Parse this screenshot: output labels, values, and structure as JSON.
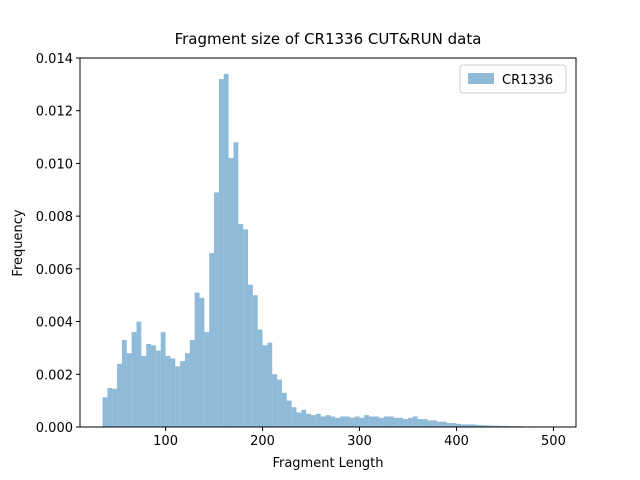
{
  "chart_data": {
    "type": "histogram",
    "title": "Fragment size of CR1336 CUT&RUN data",
    "xlabel": "Fragment Length",
    "ylabel": "Frequency",
    "bins": [
      35,
      40,
      45,
      50,
      55,
      60,
      65,
      70,
      75,
      80,
      85,
      90,
      95,
      100,
      105,
      110,
      115,
      120,
      125,
      130,
      135,
      140,
      145,
      150,
      155,
      160,
      165,
      170,
      175,
      180,
      185,
      190,
      195,
      200,
      205,
      210,
      215,
      220,
      225,
      230,
      235,
      240,
      245,
      250,
      255,
      260,
      265,
      270,
      275,
      280,
      285,
      290,
      295,
      300,
      305,
      310,
      315,
      320,
      325,
      330,
      335,
      340,
      345,
      350,
      355,
      360,
      365,
      370,
      375,
      380,
      385,
      390,
      395,
      400,
      405,
      410,
      415,
      420,
      425,
      430,
      435,
      440,
      445,
      450,
      455,
      460,
      465,
      470,
      475,
      480,
      485,
      490,
      495,
      500
    ],
    "series": [
      {
        "name": "CR1336",
        "color": "#1f77b4",
        "alpha": 0.5,
        "values": [
          0.00113,
          0.00148,
          0.00145,
          0.0024,
          0.0033,
          0.0028,
          0.0036,
          0.004,
          0.0027,
          0.00315,
          0.0031,
          0.0029,
          0.0036,
          0.0027,
          0.0026,
          0.0023,
          0.0025,
          0.0028,
          0.0033,
          0.0051,
          0.0049,
          0.0036,
          0.0066,
          0.0089,
          0.0132,
          0.0134,
          0.0102,
          0.0108,
          0.0077,
          0.0075,
          0.0054,
          0.005,
          0.0037,
          0.0031,
          0.0032,
          0.002,
          0.0018,
          0.0013,
          0.001,
          0.00075,
          0.00055,
          0.00065,
          0.0005,
          0.00045,
          0.0005,
          0.0004,
          0.00045,
          0.0004,
          0.00035,
          0.0004,
          0.0004,
          0.00035,
          0.0004,
          0.00035,
          0.00045,
          0.0004,
          0.0004,
          0.00035,
          0.0004,
          0.0004,
          0.00035,
          0.00035,
          0.0003,
          0.00035,
          0.0004,
          0.0003,
          0.0003,
          0.00025,
          0.00025,
          0.0002,
          0.0002,
          0.00015,
          0.00015,
          0.00012,
          0.0001,
          0.0001,
          0.0001,
          8e-05,
          7e-05,
          6e-05,
          5e-05,
          5e-05,
          4e-05,
          4e-05,
          3e-05,
          3e-05,
          3e-05,
          2e-05,
          2e-05,
          2e-05,
          1e-05,
          1e-05,
          1e-05
        ]
      }
    ],
    "xlim": [
      11.75,
      523.25
    ],
    "xticks": [
      100,
      200,
      300,
      400,
      500
    ],
    "ylim": [
      0,
      0.014
    ],
    "yticks": [
      {
        "value": 0,
        "label": "0.000"
      },
      {
        "value": 0.002,
        "label": "0.002"
      },
      {
        "value": 0.004,
        "label": "0.004"
      },
      {
        "value": 0.006,
        "label": "0.006"
      },
      {
        "value": 0.008,
        "label": "0.008"
      },
      {
        "value": 0.01,
        "label": "0.010"
      },
      {
        "value": 0.012,
        "label": "0.012"
      },
      {
        "value": 0.014,
        "label": "0.014"
      }
    ],
    "legend": "upper right"
  }
}
